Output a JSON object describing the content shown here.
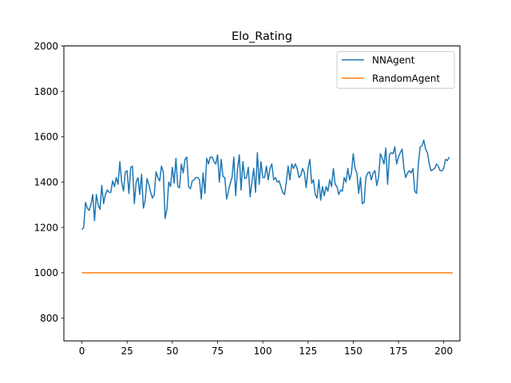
{
  "chart_data": {
    "type": "line",
    "title": "Elo_Rating",
    "xlabel": "",
    "ylabel": "",
    "xlim": [
      -9.95,
      208.95
    ],
    "ylim": [
      700,
      2000
    ],
    "xticks": [
      0,
      25,
      50,
      75,
      100,
      125,
      150,
      175,
      200
    ],
    "yticks": [
      800,
      1000,
      1200,
      1400,
      1600,
      1800,
      2000
    ],
    "grid": false,
    "legend_position": "top-right",
    "series": [
      {
        "name": "NNAgent",
        "color": "#1f77b4",
        "x_start": 0,
        "x_step": 1,
        "values": [
          1190,
          1200,
          1310,
          1285,
          1275,
          1300,
          1345,
          1230,
          1345,
          1300,
          1280,
          1385,
          1305,
          1345,
          1365,
          1355,
          1355,
          1405,
          1380,
          1420,
          1390,
          1490,
          1400,
          1360,
          1445,
          1450,
          1350,
          1465,
          1470,
          1305,
          1400,
          1420,
          1345,
          1435,
          1285,
          1320,
          1415,
          1390,
          1355,
          1330,
          1345,
          1445,
          1420,
          1405,
          1470,
          1445,
          1240,
          1280,
          1400,
          1380,
          1465,
          1395,
          1505,
          1380,
          1375,
          1480,
          1440,
          1500,
          1510,
          1380,
          1370,
          1405,
          1410,
          1420,
          1420,
          1410,
          1325,
          1440,
          1350,
          1505,
          1480,
          1510,
          1510,
          1490,
          1480,
          1520,
          1400,
          1500,
          1425,
          1420,
          1325,
          1360,
          1395,
          1420,
          1510,
          1340,
          1455,
          1520,
          1365,
          1490,
          1415,
          1420,
          1465,
          1335,
          1400,
          1460,
          1355,
          1530,
          1390,
          1490,
          1420,
          1420,
          1470,
          1410,
          1460,
          1480,
          1410,
          1420,
          1400,
          1405,
          1380,
          1355,
          1345,
          1400,
          1470,
          1410,
          1480,
          1460,
          1480,
          1460,
          1420,
          1430,
          1460,
          1440,
          1375,
          1460,
          1500,
          1395,
          1410,
          1345,
          1330,
          1410,
          1320,
          1380,
          1340,
          1380,
          1360,
          1410,
          1380,
          1460,
          1390,
          1380,
          1345,
          1365,
          1360,
          1420,
          1400,
          1460,
          1410,
          1440,
          1525,
          1460,
          1440,
          1350,
          1420,
          1305,
          1310,
          1420,
          1440,
          1445,
          1410,
          1440,
          1450,
          1385,
          1420,
          1525,
          1505,
          1480,
          1550,
          1390,
          1520,
          1530,
          1525,
          1555,
          1480,
          1510,
          1530,
          1545,
          1460,
          1420,
          1440,
          1450,
          1440,
          1460,
          1360,
          1350,
          1480,
          1555,
          1560,
          1585,
          1545,
          1530,
          1480,
          1450,
          1455,
          1460,
          1480,
          1470,
          1450,
          1450,
          1460,
          1500,
          1495,
          1510
        ]
      },
      {
        "name": "RandomAgent",
        "color": "#ff7f0e",
        "x_start": 0,
        "x_step": 1,
        "values": [
          1000,
          1000,
          1000,
          1000,
          1000,
          1000,
          1000,
          1000,
          1000,
          1000,
          1000,
          1000,
          1000,
          1000,
          1000,
          1000,
          1000,
          1000,
          1000,
          1000,
          1000,
          1000,
          1000,
          1000,
          1000,
          1000,
          1000,
          1000,
          1000,
          1000,
          1000,
          1000,
          1000,
          1000,
          1000,
          1000,
          1000,
          1000,
          1000,
          1000,
          1000,
          1000,
          1000,
          1000,
          1000,
          1000,
          1000,
          1000,
          1000,
          1000,
          1000,
          1000,
          1000,
          1000,
          1000,
          1000,
          1000,
          1000,
          1000,
          1000,
          1000,
          1000,
          1000,
          1000,
          1000,
          1000,
          1000,
          1000,
          1000,
          1000,
          1000,
          1000,
          1000,
          1000,
          1000,
          1000,
          1000,
          1000,
          1000,
          1000,
          1000,
          1000,
          1000,
          1000,
          1000,
          1000,
          1000,
          1000,
          1000,
          1000,
          1000,
          1000,
          1000,
          1000,
          1000,
          1000,
          1000,
          1000,
          1000,
          1000,
          1000,
          1000,
          1000,
          1000,
          1000,
          1000,
          1000,
          1000,
          1000,
          1000,
          1000,
          1000,
          1000,
          1000,
          1000,
          1000,
          1000,
          1000,
          1000,
          1000,
          1000,
          1000,
          1000,
          1000,
          1000,
          1000,
          1000,
          1000,
          1000,
          1000,
          1000,
          1000,
          1000,
          1000,
          1000,
          1000,
          1000,
          1000,
          1000,
          1000,
          1000,
          1000,
          1000,
          1000,
          1000,
          1000,
          1000,
          1000,
          1000,
          1000,
          1000,
          1000,
          1000,
          1000,
          1000,
          1000,
          1000,
          1000,
          1000,
          1000,
          1000,
          1000,
          1000,
          1000,
          1000,
          1000,
          1000,
          1000,
          1000,
          1000,
          1000,
          1000,
          1000,
          1000,
          1000,
          1000,
          1000,
          1000,
          1000,
          1000,
          1000,
          1000,
          1000,
          1000,
          1000,
          1000,
          1000,
          1000,
          1000,
          1000,
          1000,
          1000,
          1000,
          1000,
          1000,
          1000,
          1000,
          1000,
          1000,
          1000,
          1000,
          1000,
          1000,
          1000,
          1000,
          1000
        ]
      }
    ]
  }
}
